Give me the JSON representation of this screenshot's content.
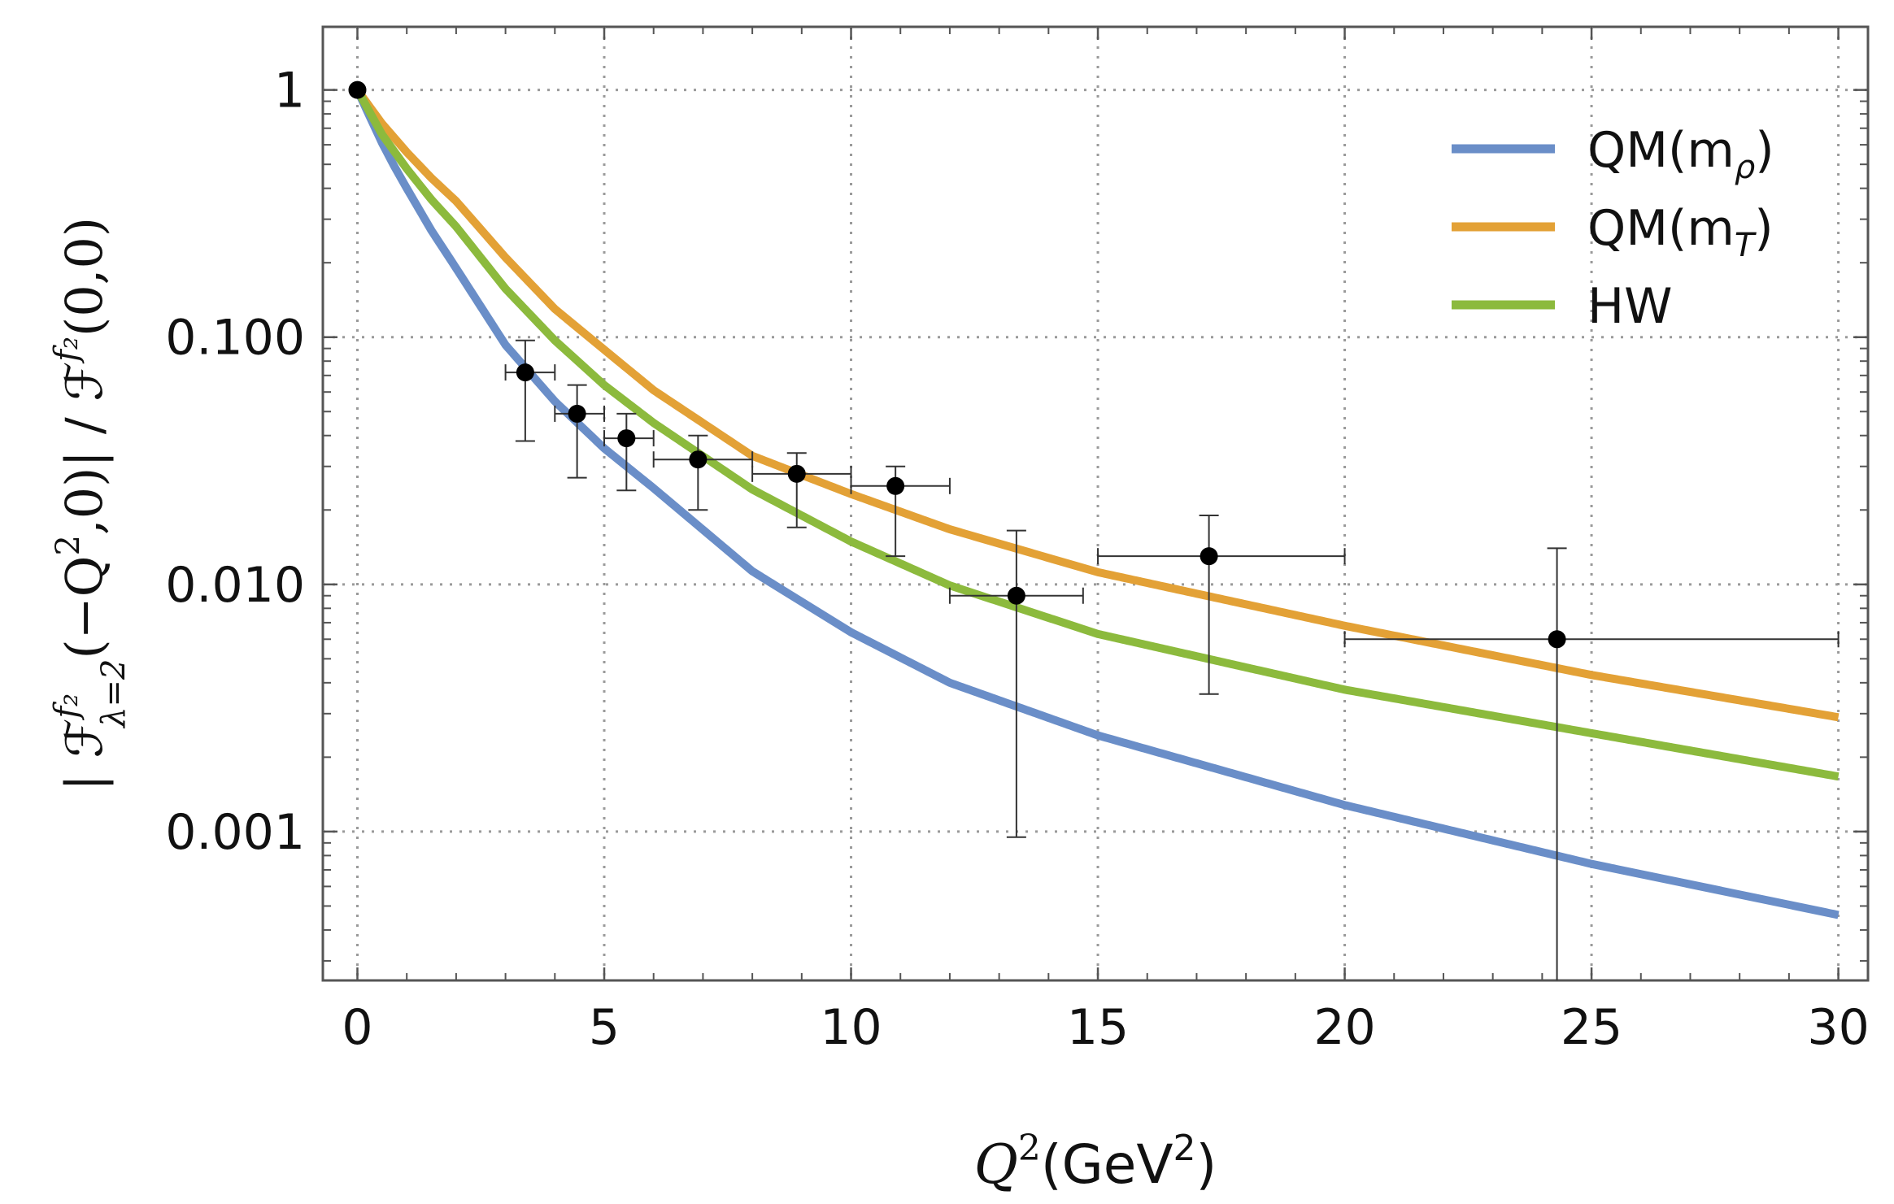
{
  "chart_data": {
    "type": "line",
    "title": "",
    "xlabel": {
      "main": "Q",
      "sup": "2",
      "unit": "(GeV",
      "unit_sup": "2",
      "close": ")"
    },
    "ylabel": {
      "part1": "| ℱ",
      "sup1": "f₂",
      "sub1": "λ=2",
      "part2": "(−Q",
      "sup2": "2",
      "part3": ",0)| / ℱ",
      "sup3": "f₂",
      "part4": "(0,0)"
    },
    "xlim": [
      -0.7,
      30.6
    ],
    "ylim": [
      0.00025,
      1.8
    ],
    "yscale": "log",
    "grid": true,
    "legend_position": "top-right",
    "x_ticks": [
      0,
      5,
      10,
      15,
      20,
      25,
      30
    ],
    "x_tick_labels": [
      "0",
      "5",
      "10",
      "15",
      "20",
      "25",
      "30"
    ],
    "y_ticks": [
      1,
      0.1,
      0.01,
      0.001
    ],
    "y_tick_labels": [
      "1",
      "0.100",
      "0.010",
      "0.001"
    ],
    "series": [
      {
        "name": "QM(m_ρ)",
        "legend": {
          "main": "QM(m",
          "sub": "ρ",
          "close": ")"
        },
        "color": "#6a8ec8",
        "x": [
          0,
          0.25,
          0.5,
          0.75,
          1,
          1.5,
          2,
          3,
          4,
          5,
          6,
          8,
          10,
          12,
          15,
          20,
          25,
          30
        ],
        "y": [
          1,
          0.78,
          0.61,
          0.49,
          0.4,
          0.27,
          0.19,
          0.093,
          0.055,
          0.0355,
          0.0245,
          0.0113,
          0.0064,
          0.004,
          0.00245,
          0.00128,
          0.00074,
          0.00046
        ]
      },
      {
        "name": "QM(m_T)",
        "legend": {
          "main": "QM(m",
          "sub": "T",
          "close": ")"
        },
        "color": "#e3a136",
        "x": [
          0,
          0.5,
          1,
          1.5,
          2,
          3,
          4,
          5,
          6,
          8,
          10,
          12,
          15,
          20,
          25,
          30
        ],
        "y": [
          1,
          0.73,
          0.56,
          0.44,
          0.355,
          0.21,
          0.13,
          0.089,
          0.061,
          0.0331,
          0.0232,
          0.0167,
          0.0112,
          0.0068,
          0.0043,
          0.0029
        ]
      },
      {
        "name": "HW",
        "legend": {
          "main": "HW",
          "sub": "",
          "close": ""
        },
        "color": "#8cba3d",
        "x": [
          0,
          0.5,
          1,
          1.5,
          2,
          3,
          4,
          5,
          6,
          8,
          10,
          12,
          15,
          20,
          25,
          30
        ],
        "y": [
          1,
          0.66,
          0.48,
          0.36,
          0.28,
          0.157,
          0.097,
          0.064,
          0.045,
          0.0242,
          0.0149,
          0.0099,
          0.0063,
          0.00375,
          0.0025,
          0.00167
        ]
      }
    ],
    "data_points": {
      "name": "",
      "color": "#000000",
      "points": [
        {
          "x": 0.0,
          "y": 1.0,
          "xerr": [
            0.0,
            0.0
          ],
          "yerr": [
            1.0,
            1.0
          ]
        },
        {
          "x": 3.4,
          "y": 0.072,
          "xerr": [
            3.0,
            4.0
          ],
          "yerr": [
            0.038,
            0.097
          ]
        },
        {
          "x": 4.45,
          "y": 0.049,
          "xerr": [
            4.0,
            5.0
          ],
          "yerr": [
            0.027,
            0.064
          ]
        },
        {
          "x": 5.45,
          "y": 0.039,
          "xerr": [
            5.0,
            6.0
          ],
          "yerr": [
            0.024,
            0.049
          ]
        },
        {
          "x": 6.9,
          "y": 0.032,
          "xerr": [
            6.0,
            8.0
          ],
          "yerr": [
            0.02,
            0.04
          ]
        },
        {
          "x": 8.9,
          "y": 0.028,
          "xerr": [
            8.0,
            10.0
          ],
          "yerr": [
            0.017,
            0.034
          ]
        },
        {
          "x": 10.9,
          "y": 0.025,
          "xerr": [
            10.0,
            12.0
          ],
          "yerr": [
            0.013,
            0.03
          ]
        },
        {
          "x": 13.35,
          "y": 0.009,
          "xerr": [
            12.0,
            14.7
          ],
          "yerr": [
            0.00095,
            0.0165
          ]
        },
        {
          "x": 17.25,
          "y": 0.013,
          "xerr": [
            15.0,
            20.0
          ],
          "yerr": [
            0.0036,
            0.019
          ]
        },
        {
          "x": 24.3,
          "y": 0.006,
          "xerr": [
            20.0,
            30.0
          ],
          "yerr": [
            0.00025,
            0.014
          ]
        }
      ]
    }
  }
}
